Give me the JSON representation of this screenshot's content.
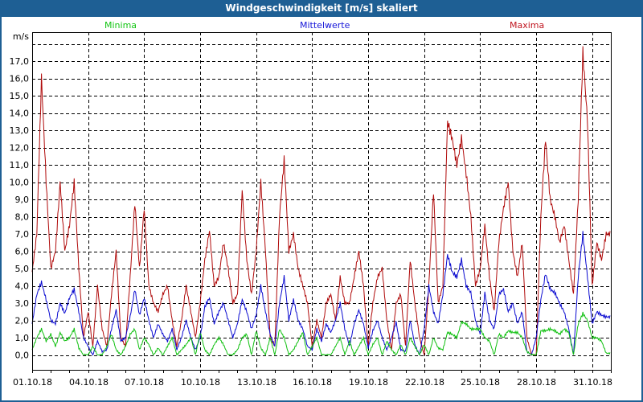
{
  "window": {
    "title": "Windgeschwindigkeit [m/s] skaliert"
  },
  "legend": {
    "min_label": "Minima",
    "mean_label": "Mittelwerte",
    "max_label": "Maxima"
  },
  "colors": {
    "titlebar": "#1e5f94",
    "minima": "#10c010",
    "mittelwerte": "#0a0ad0",
    "maxima": "#b00a0a",
    "grid": "#000000"
  },
  "chart_data": {
    "type": "line",
    "title": "Windgeschwindigkeit [m/s] skaliert",
    "xlabel": "",
    "ylabel": "m/s",
    "ylim": [
      0,
      18
    ],
    "xlim_days": [
      0,
      31
    ],
    "y_ticks": [
      "0,0",
      "1,0",
      "2,0",
      "3,0",
      "4,0",
      "5,0",
      "6,0",
      "7,0",
      "8,0",
      "9,0",
      "10,0",
      "11,0",
      "12,0",
      "13,0",
      "14,0",
      "15,0",
      "16,0",
      "17,0"
    ],
    "x_ticks": [
      {
        "day": 0,
        "label": "01.10.18"
      },
      {
        "day": 3,
        "label": "04.10.18"
      },
      {
        "day": 6,
        "label": "07.10.18"
      },
      {
        "day": 9,
        "label": "10.10.18"
      },
      {
        "day": 12,
        "label": "13.10.18"
      },
      {
        "day": 15,
        "label": "16.10.18"
      },
      {
        "day": 18,
        "label": "19.10.18"
      },
      {
        "day": 21,
        "label": "22.10.18"
      },
      {
        "day": 24,
        "label": "25.10.18"
      },
      {
        "day": 27,
        "label": "28.10.18"
      },
      {
        "day": 30,
        "label": "31.10.18"
      }
    ],
    "grid": true,
    "legend_position": "top",
    "samples_per_day": 4,
    "series": [
      {
        "name": "Minima",
        "color": "#10c010",
        "values": [
          0.3,
          1.0,
          1.5,
          0.8,
          1.2,
          0.5,
          1.3,
          0.8,
          1.0,
          1.5,
          0.4,
          0.0,
          0.0,
          0.5,
          0.0,
          0.0,
          0.5,
          1.2,
          0.3,
          0.0,
          0.5,
          1.2,
          1.5,
          0.3,
          1.0,
          0.6,
          0.0,
          0.4,
          0.0,
          0.5,
          1.0,
          0.0,
          0.3,
          0.6,
          1.0,
          0.0,
          1.3,
          0.3,
          0.0,
          0.6,
          1.0,
          0.6,
          0.0,
          0.0,
          0.3,
          1.0,
          1.2,
          0.0,
          1.4,
          0.4,
          0.0,
          1.0,
          0.0,
          1.5,
          1.0,
          0.0,
          0.3,
          0.8,
          1.3,
          0.0,
          0.5,
          1.0,
          0.0,
          0.0,
          0.0,
          0.5,
          1.0,
          0.0,
          0.8,
          0.0,
          0.5,
          1.0,
          0.0,
          0.6,
          1.0,
          0.0,
          0.8,
          0.3,
          0.0,
          0.6,
          0.0,
          1.0,
          0.5,
          0.0,
          0.6,
          0.0,
          1.0,
          0.4,
          0.3,
          1.3,
          1.2,
          1.0,
          1.9,
          1.8,
          1.5,
          1.5,
          1.5,
          1.0,
          0.8,
          0.0,
          1.2,
          1.0,
          1.4,
          1.3,
          1.3,
          1.0,
          0.2,
          0.0,
          0.0,
          1.4,
          1.4,
          1.5,
          1.4,
          1.2,
          1.5,
          1.3,
          0.0,
          1.8,
          2.4,
          2.0,
          1.0,
          1.0,
          0.8,
          0.1
        ]
      },
      {
        "name": "Mittelwerte",
        "color": "#0a0ad0",
        "values": [
          1.8,
          3.5,
          4.2,
          3.2,
          2.0,
          1.8,
          3.0,
          2.4,
          3.3,
          3.8,
          2.5,
          1.0,
          0.5,
          0.0,
          0.8,
          0.2,
          0.3,
          1.5,
          2.6,
          0.8,
          1.0,
          2.2,
          3.8,
          2.3,
          3.3,
          2.0,
          1.0,
          1.8,
          1.2,
          0.8,
          1.5,
          0.3,
          1.0,
          2.0,
          1.0,
          0.3,
          1.0,
          2.8,
          3.3,
          1.8,
          2.5,
          3.0,
          2.0,
          1.0,
          1.8,
          3.2,
          2.5,
          1.5,
          2.3,
          4.0,
          2.5,
          1.2,
          0.5,
          3.0,
          4.5,
          2.0,
          3.2,
          2.0,
          1.5,
          0.5,
          0.3,
          1.5,
          0.8,
          1.8,
          1.3,
          2.0,
          3.0,
          1.5,
          0.5,
          1.8,
          2.6,
          1.8,
          0.4,
          1.4,
          2.0,
          1.0,
          0.3,
          1.0,
          1.9,
          0.3,
          0.2,
          2.0,
          0.6,
          0.0,
          1.5,
          4.0,
          2.5,
          1.8,
          3.5,
          5.8,
          4.8,
          4.5,
          5.5,
          4.0,
          3.6,
          2.0,
          1.2,
          3.6,
          2.0,
          1.5,
          3.5,
          3.8,
          2.5,
          3.0,
          1.8,
          2.5,
          0.2,
          0.0,
          1.0,
          3.2,
          4.7,
          3.8,
          3.6,
          3.0,
          2.5,
          1.5,
          0.0,
          4.5,
          7.0,
          4.5,
          1.8,
          2.5,
          2.3,
          2.2
        ]
      },
      {
        "name": "Maxima",
        "color": "#b00a0a",
        "values": [
          4.8,
          7.0,
          16.0,
          10.0,
          5.0,
          6.0,
          10.0,
          6.0,
          7.5,
          10.0,
          5.0,
          1.0,
          2.5,
          0.5,
          4.0,
          1.5,
          0.5,
          3.5,
          6.0,
          1.0,
          0.5,
          4.5,
          8.8,
          5.0,
          8.5,
          4.0,
          3.0,
          2.5,
          3.5,
          4.0,
          2.0,
          0.5,
          2.0,
          4.0,
          2.5,
          1.0,
          3.0,
          5.5,
          7.2,
          4.0,
          4.5,
          6.5,
          5.0,
          3.0,
          3.5,
          9.5,
          5.5,
          3.5,
          6.0,
          10.0,
          6.0,
          1.0,
          0.5,
          8.0,
          11.3,
          6.0,
          7.0,
          5.0,
          4.0,
          3.0,
          0.5,
          2.0,
          1.0,
          3.0,
          3.5,
          2.0,
          4.5,
          3.0,
          3.0,
          4.5,
          6.0,
          4.0,
          0.5,
          3.0,
          4.5,
          5.0,
          2.0,
          0.3,
          3.0,
          3.5,
          0.5,
          5.5,
          3.0,
          1.0,
          0.0,
          4.0,
          9.5,
          3.0,
          4.0,
          13.5,
          12.5,
          11.0,
          12.5,
          10.5,
          8.0,
          4.0,
          5.0,
          7.5,
          4.5,
          2.5,
          6.5,
          8.5,
          10.0,
          6.0,
          4.5,
          6.5,
          1.0,
          0.0,
          0.0,
          8.0,
          12.5,
          9.0,
          8.0,
          6.5,
          7.5,
          5.5,
          3.5,
          9.0,
          17.5,
          13.5,
          4.0,
          6.5,
          5.5,
          7.0
        ]
      }
    ]
  }
}
